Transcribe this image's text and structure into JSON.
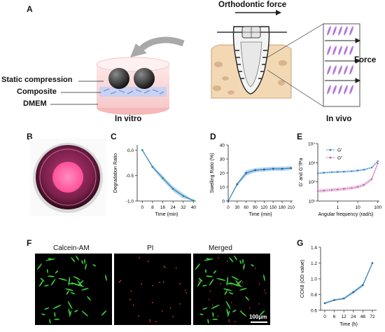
{
  "panel_letters": {
    "A": "A",
    "B": "B",
    "C": "C",
    "D": "D",
    "E": "E",
    "F": "F",
    "G": "G"
  },
  "panel_a": {
    "orthodontic_force": "Orthodontic force",
    "force": "Force",
    "static_compression": "Static compression",
    "composite": "Composite",
    "dmem": "DMEM",
    "in_vitro": "In vitro",
    "in_vivo": "In vivo"
  },
  "panel_f": {
    "titles": [
      "Calcein-AM",
      "PI",
      "Merged"
    ],
    "scale_bar": "100μm"
  },
  "colors": {
    "curve": "#2e7fc2",
    "band": "#a9cde8",
    "storage": "#3a7fc1",
    "loss": "#c45fa8",
    "petri_pink": "#ff5ea0",
    "green_cells": "#3cd23c",
    "red_cells": "#e03a3a"
  },
  "chart_data": [
    {
      "panel": "C",
      "type": "line",
      "xlabel": "Time (min)",
      "ylabel": "Degradation Ratio",
      "xticks": [
        "0",
        "8",
        "16",
        "24",
        "32",
        "40"
      ],
      "yticks": [
        "0.0",
        "-0.5",
        "-1.0"
      ],
      "xlim": [
        -4,
        42
      ],
      "ylim": [
        -1.0,
        0.1
      ],
      "x": [
        0,
        8,
        16,
        24,
        32,
        40
      ],
      "y": [
        0.0,
        -0.33,
        -0.55,
        -0.76,
        -0.9,
        -0.99
      ],
      "band": [
        0.0,
        0.03,
        0.05,
        0.05,
        0.05,
        0.01
      ]
    },
    {
      "panel": "D",
      "type": "line",
      "xlabel": "Time (min)",
      "ylabel": "Swelling Ratio  (%)",
      "xticks": [
        "0",
        "30",
        "60",
        "90",
        "120",
        "150",
        "180",
        "210"
      ],
      "yticks": [
        "0",
        "10",
        "20",
        "30",
        "40"
      ],
      "xlim": [
        0,
        215
      ],
      "ylim": [
        0,
        40
      ],
      "x": [
        0,
        30,
        60,
        90,
        120,
        150,
        180,
        210
      ],
      "y": [
        0,
        12,
        20,
        22,
        22.5,
        23,
        23,
        23.5
      ],
      "band": [
        0,
        1,
        2,
        1.5,
        1.5,
        1.5,
        1.5,
        1.5
      ]
    },
    {
      "panel": "E",
      "type": "line",
      "scale": "log",
      "xlabel": "Angular frequency (rad/s)",
      "ylabel": "G' and G''/Pa",
      "xticks": [
        "1",
        "10",
        "100"
      ],
      "yticks": [
        "10⁴",
        "10³",
        "10²",
        "10¹"
      ],
      "xlim": [
        0.1,
        120
      ],
      "ylim": [
        10,
        10000
      ],
      "series": [
        {
          "name": "G'",
          "x": [
            0.1,
            0.2,
            0.5,
            1,
            2,
            5,
            10,
            20,
            50,
            100
          ],
          "y": [
            280,
            300,
            320,
            330,
            340,
            360,
            390,
            430,
            560,
            1200
          ]
        },
        {
          "name": "G''",
          "x": [
            0.1,
            0.2,
            0.5,
            1,
            2,
            5,
            10,
            20,
            50,
            100
          ],
          "y": [
            33,
            35,
            38,
            40,
            43,
            48,
            55,
            70,
            140,
            950
          ]
        }
      ]
    },
    {
      "panel": "G",
      "type": "line",
      "xlabel": "Time (h)",
      "ylabel": "CCK8 (OD value)",
      "xticks": [
        "0",
        "6",
        "12",
        "24",
        "48",
        "72"
      ],
      "yticks": [
        "0.6",
        "0.8",
        "1.0",
        "1.2",
        "1.4"
      ],
      "ylim": [
        0.6,
        1.4
      ],
      "x": [
        0,
        6,
        12,
        24,
        48,
        72
      ],
      "y": [
        0.69,
        0.73,
        0.75,
        0.83,
        0.92,
        1.2
      ],
      "band": [
        0.01,
        0.01,
        0.01,
        0.02,
        0.02,
        0.01
      ]
    }
  ]
}
